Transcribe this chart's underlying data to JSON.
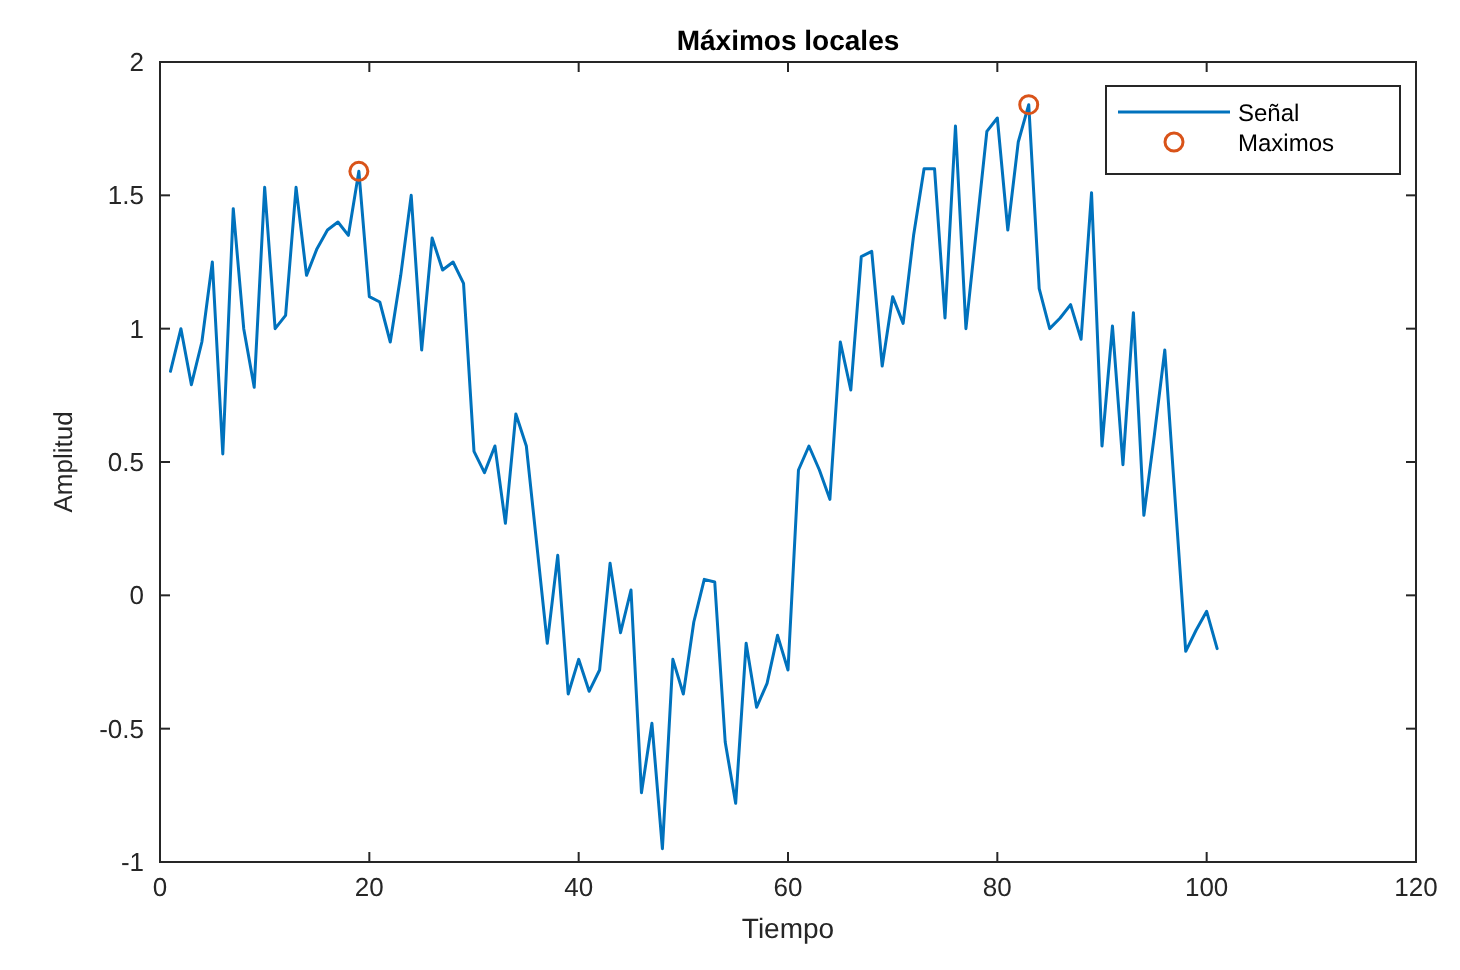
{
  "chart_data": {
    "type": "line",
    "title": "Máximos locales",
    "xlabel": "Tiempo",
    "ylabel": "Amplitud",
    "xlim": [
      0,
      120
    ],
    "xticks": [
      0,
      20,
      40,
      60,
      80,
      100,
      120
    ],
    "ylim": [
      -1,
      2
    ],
    "yticks": [
      -1,
      -0.5,
      0,
      0.5,
      1,
      1.5,
      2
    ],
    "legend": "top right",
    "series": [
      {
        "name": "Señal",
        "color": "#0072bd",
        "marker": "none",
        "line_style": "solid",
        "x": [
          1,
          2,
          3,
          4,
          5,
          6,
          7,
          8,
          9,
          10,
          11,
          12,
          13,
          14,
          15,
          16,
          17,
          18,
          19,
          20,
          21,
          22,
          23,
          24,
          25,
          26,
          27,
          28,
          29,
          30,
          31,
          32,
          33,
          34,
          35,
          36,
          37,
          38,
          39,
          40,
          41,
          42,
          43,
          44,
          45,
          46,
          47,
          48,
          49,
          50,
          51,
          52,
          53,
          54,
          55,
          56,
          57,
          58,
          59,
          60,
          61,
          62,
          63,
          64,
          65,
          66,
          67,
          68,
          69,
          70,
          71,
          72,
          73,
          74,
          75,
          76,
          77,
          78,
          79,
          80,
          81,
          82,
          83,
          84,
          85,
          86,
          87,
          88,
          89,
          90,
          91,
          92,
          93,
          94,
          95,
          96,
          97,
          98,
          99,
          100,
          101
        ],
        "values": [
          0.84,
          1.0,
          0.79,
          0.95,
          1.25,
          0.53,
          1.45,
          1.0,
          0.78,
          1.53,
          1.0,
          1.05,
          1.53,
          1.2,
          1.3,
          1.37,
          1.4,
          1.35,
          1.59,
          1.12,
          1.1,
          0.95,
          1.2,
          1.5,
          0.92,
          1.34,
          1.22,
          1.25,
          1.17,
          0.54,
          0.46,
          0.56,
          0.27,
          0.68,
          0.56,
          0.19,
          -0.18,
          0.15,
          -0.37,
          -0.24,
          -0.36,
          -0.28,
          0.12,
          -0.14,
          0.02,
          -0.74,
          -0.48,
          -0.95,
          -0.24,
          -0.37,
          -0.1,
          0.06,
          0.05,
          -0.55,
          -0.78,
          -0.18,
          -0.42,
          -0.33,
          -0.15,
          -0.28,
          0.47,
          0.56,
          0.47,
          0.36,
          0.95,
          0.77,
          1.27,
          1.29,
          0.86,
          1.12,
          1.02,
          1.35,
          1.6,
          1.6,
          1.04,
          1.76,
          1.0,
          1.37,
          1.74,
          1.79,
          1.37,
          1.7,
          1.84,
          1.15,
          1.0,
          1.04,
          1.09,
          0.96,
          1.51,
          0.56,
          1.01,
          0.49,
          1.06,
          0.3,
          0.6,
          0.92,
          0.35,
          -0.21,
          -0.13,
          -0.06,
          -0.2
        ]
      },
      {
        "name": "Maximos",
        "type": "scatter",
        "color": "#d95319",
        "marker": "circle",
        "x": [
          19,
          83
        ],
        "values": [
          1.59,
          1.84
        ]
      }
    ]
  }
}
